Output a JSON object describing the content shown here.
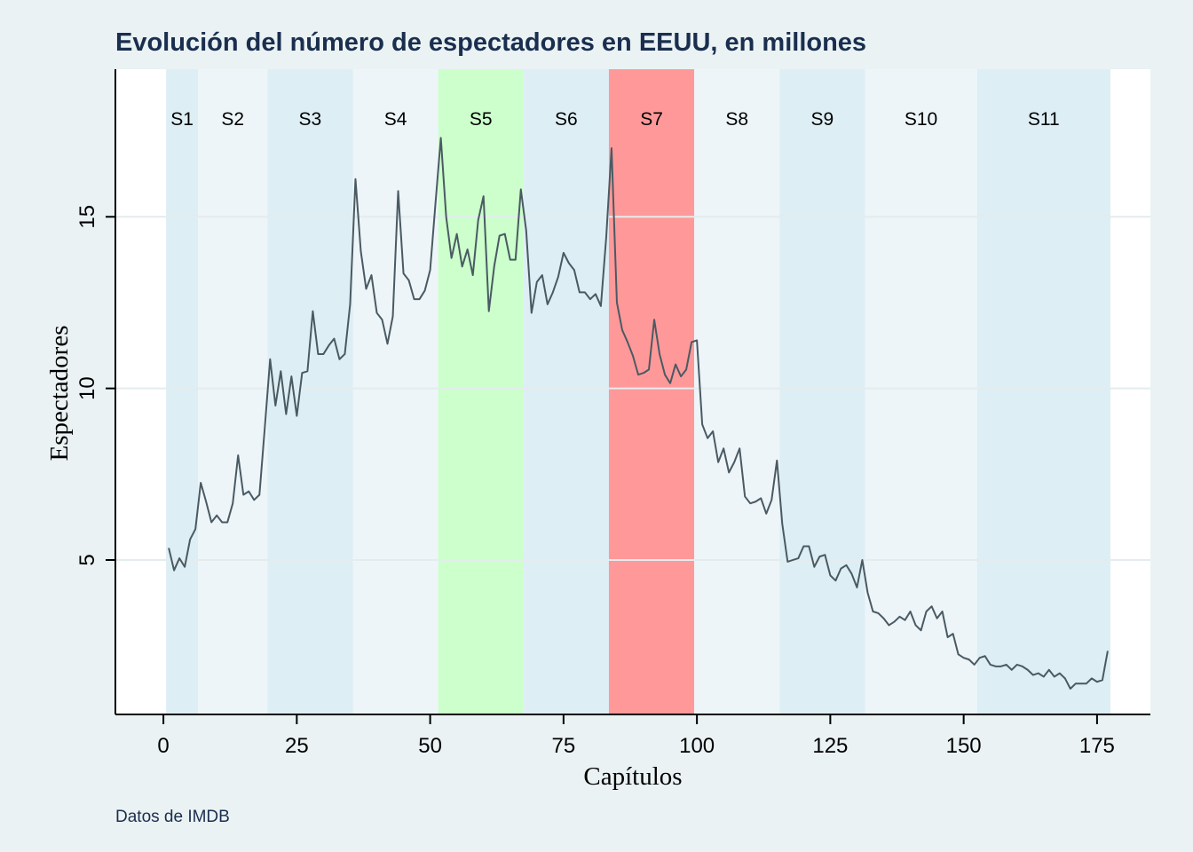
{
  "chart_data": {
    "type": "line",
    "title": "Evolución del número de espectadores en EEUU, en millones",
    "note": "Datos de IMDB",
    "xlabel": "Capítulos",
    "ylabel": "Espectadores",
    "xlim": [
      -9,
      185
    ],
    "ylim": [
      0.5,
      19.3
    ],
    "xticks": [
      0,
      25,
      50,
      75,
      100,
      125,
      150,
      175
    ],
    "yticks": [
      5,
      10,
      15
    ],
    "grid": true,
    "colors": {
      "line": "#4a5a63",
      "band_light": "#ddeef4",
      "band_lighter": "#edf5f9",
      "band_green": "#ccffcc",
      "band_red": "#ff9999",
      "plot_bg": "#ffffff",
      "outer_bg": "#eaf2f3",
      "title": "#1a2e4f",
      "grid": "#e4ecee"
    },
    "seasons": [
      {
        "label": "S1",
        "start": 0.5,
        "end": 6.5,
        "color": "#ddeef4"
      },
      {
        "label": "S2",
        "start": 6.5,
        "end": 19.5,
        "color": "#edf5f9"
      },
      {
        "label": "S3",
        "start": 19.5,
        "end": 35.5,
        "color": "#ddeef4"
      },
      {
        "label": "S4",
        "start": 35.5,
        "end": 51.5,
        "color": "#edf5f9"
      },
      {
        "label": "S5",
        "start": 51.5,
        "end": 67.5,
        "color": "#ccffcc"
      },
      {
        "label": "S6",
        "start": 67.5,
        "end": 83.5,
        "color": "#ddeef4"
      },
      {
        "label": "S7",
        "start": 83.5,
        "end": 99.5,
        "color": "#ff9999"
      },
      {
        "label": "S8",
        "start": 99.5,
        "end": 115.5,
        "color": "#edf5f9"
      },
      {
        "label": "S9",
        "start": 115.5,
        "end": 131.5,
        "color": "#ddeef4"
      },
      {
        "label": "S10",
        "start": 131.5,
        "end": 152.5,
        "color": "#edf5f9"
      },
      {
        "label": "S11",
        "start": 152.5,
        "end": 177.5,
        "color": "#ddeef4"
      }
    ],
    "series": [
      {
        "x_start": 1,
        "values": [
          5.35,
          4.7,
          5.05,
          4.8,
          5.6,
          5.9,
          7.25,
          6.7,
          6.1,
          6.3,
          6.1,
          6.1,
          6.65,
          8.05,
          6.9,
          7.0,
          6.75,
          6.9,
          8.85,
          10.85,
          9.5,
          10.5,
          9.25,
          10.35,
          9.2,
          10.45,
          10.5,
          12.25,
          11.0,
          11.0,
          11.25,
          11.45,
          10.85,
          11.0,
          12.45,
          16.1,
          14.0,
          12.9,
          13.3,
          12.2,
          12.0,
          11.3,
          12.1,
          15.75,
          13.35,
          13.15,
          12.6,
          12.6,
          12.85,
          13.45,
          15.4,
          17.3,
          15.0,
          13.8,
          14.5,
          13.55,
          14.05,
          13.3,
          14.9,
          15.6,
          12.25,
          13.55,
          14.45,
          14.5,
          13.75,
          13.75,
          15.8,
          14.6,
          12.2,
          13.1,
          13.3,
          12.45,
          12.8,
          13.25,
          13.95,
          13.65,
          13.45,
          12.8,
          12.8,
          12.6,
          12.75,
          12.4,
          14.4,
          17.0,
          12.5,
          11.7,
          11.35,
          10.95,
          10.4,
          10.45,
          10.55,
          12.0,
          11.0,
          10.4,
          10.15,
          10.7,
          10.35,
          10.55,
          11.35,
          11.4,
          8.95,
          8.55,
          8.75,
          7.85,
          8.25,
          7.55,
          7.85,
          8.25,
          6.85,
          6.65,
          6.7,
          6.8,
          6.35,
          6.75,
          7.9,
          6.05,
          4.95,
          5.0,
          5.05,
          5.4,
          5.4,
          4.8,
          5.1,
          5.15,
          4.55,
          4.4,
          4.75,
          4.85,
          4.6,
          4.2,
          5.0,
          4.05,
          3.5,
          3.45,
          3.3,
          3.1,
          3.2,
          3.35,
          3.25,
          3.5,
          3.1,
          2.95,
          3.5,
          3.65,
          3.3,
          3.5,
          2.75,
          2.85,
          2.25,
          2.15,
          2.1,
          1.95,
          2.15,
          2.2,
          1.95,
          1.9,
          1.9,
          1.95,
          1.8,
          1.95,
          1.9,
          1.8,
          1.65,
          1.7,
          1.6,
          1.8,
          1.6,
          1.7,
          1.55,
          1.25,
          1.4,
          1.4,
          1.4,
          1.55,
          1.45,
          1.5,
          2.35
        ]
      }
    ]
  }
}
